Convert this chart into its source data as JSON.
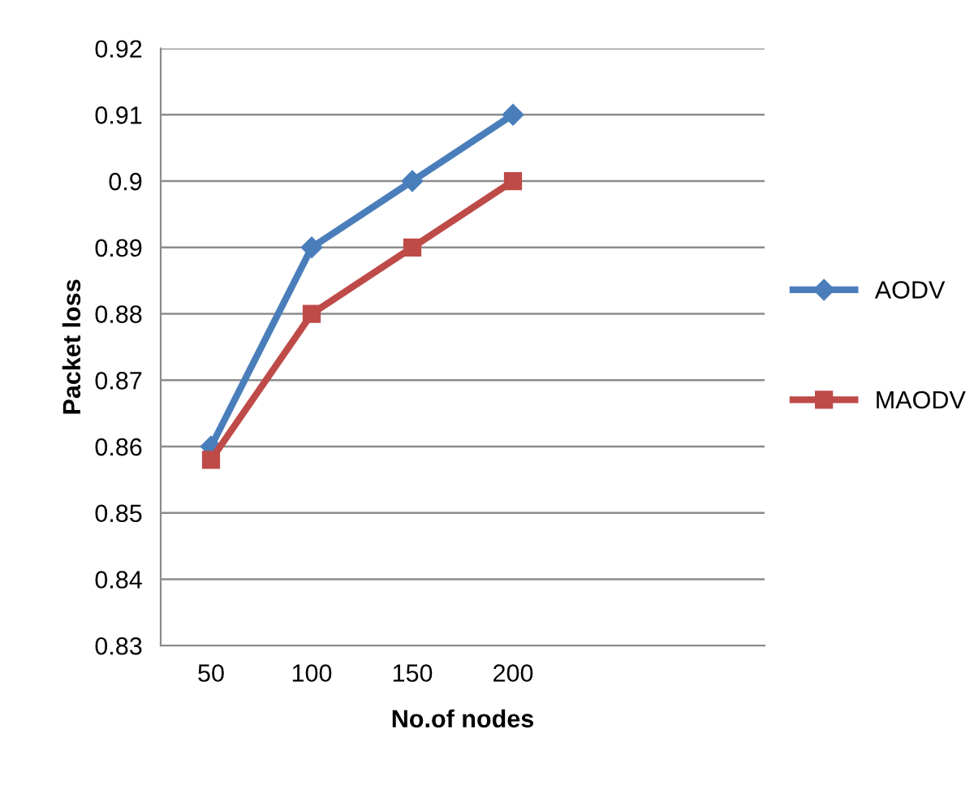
{
  "chart_data": {
    "type": "line",
    "xlabel": "No.of nodes",
    "ylabel": "Packet loss",
    "categories": [
      "50",
      "100",
      "150",
      "200",
      null,
      null
    ],
    "series": [
      {
        "name": "AODV",
        "color": "#4a7ebb",
        "marker": "diamond",
        "values": [
          0.86,
          0.89,
          0.9,
          0.91,
          null,
          null
        ]
      },
      {
        "name": "MAODV",
        "color": "#be4b48",
        "marker": "square",
        "values": [
          0.858,
          0.88,
          0.89,
          0.9,
          null,
          null
        ]
      }
    ],
    "ylim": [
      0.83,
      0.92
    ],
    "yticks": [
      0.83,
      0.84,
      0.85,
      0.86,
      0.87,
      0.88,
      0.89,
      0.9,
      0.91,
      0.92
    ],
    "grid": "y",
    "legend": "right",
    "line_style": "solid"
  }
}
